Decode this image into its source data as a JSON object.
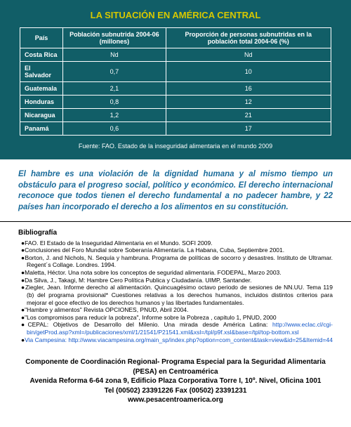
{
  "theme": {
    "teal": "#115e67",
    "yellow": "#d7c800",
    "quote_color": "#1a6b9a",
    "link_color": "#1357c9",
    "page_bg": "#ffffff",
    "border": "#ffffff"
  },
  "table_block": {
    "title": "LA SITUACIÓN EN AMÉRICA CENTRAL",
    "columns": [
      "País",
      "Población subnutrida 2004-06 (millones)",
      "Proporción de personas subnutridas en la población total 2004-06 (%)"
    ],
    "rows": [
      [
        "Costa Rica",
        "Nd",
        "Nd"
      ],
      [
        "El Salvador",
        "0,7",
        "10"
      ],
      [
        "Guatemala",
        "2,1",
        "16"
      ],
      [
        "Honduras",
        "0,8",
        "12"
      ],
      [
        "Nicaragua",
        "1,2",
        "21"
      ],
      [
        "Panamá",
        "0,6",
        "17"
      ]
    ],
    "source": "Fuente: FAO. Estado de la inseguridad alimentaria en el mundo 2009"
  },
  "quote": "El hambre es una violación de la dignidad humana y al mismo tiempo un obstáculo para el progreso social, político y económico. El derecho internacional reconoce que todos tienen el derecho fundamental a no padecer hambre, y 22 países han incorporado el derecho a los alimentos en su constitución.",
  "biblio": {
    "title": "Bibliografía",
    "entries": [
      {
        "text": "FAO. El Estado de la Inseguridad Alimentaria en el Mundo. SOFI 2009."
      },
      {
        "text": "Conclusiones del Foro Mundial sobre Soberanía Alimentaría. La Habana, Cuba, Septiembre 2001."
      },
      {
        "text": "Borton, J. and Nichols, N. Sequía y hambruna. Programa de políticas de socorro y desastres. Instituto de Ultramar. Regent´s Collage. Londres. 1994."
      },
      {
        "text": "Maletta, Héctor. Una nota sobre los conceptos de seguridad alimentaria. FODEPAL, Marzo 2003."
      },
      {
        "text": "Da Silva, J., Takagi, M: Hambre Cero Política Publica y Ciudadanía. UIMP, Santander."
      },
      {
        "text": "Ziegler, Jean. Informe derecho al alimentación. Quincuagésimo octavo periodo de sesiones de NN.UU. Tema 119 (b) del programa provisional* Cuestiones relativas a los derechos humanos, incluidos distintos criterios para mejorar el goce efectivo de los derechos humanos y las libertades fundamentales."
      },
      {
        "text": "\"Hambre y alimentos\" Revista OPCIONES, PNUD, Abril 2004."
      },
      {
        "text": "\"Los compromisos para reducir la pobreza\", Informe sobre la Pobreza , capitulo 1, PNUD, 2000"
      },
      {
        "text": "CEPAL: Objetivos de Desarrollo del Milenio. Una mirada desde América Latina:",
        "link_label": "http://www.eclac.cl/cgi-bin/getProd.asp?xml=/publicaciones/xml/1/21541/P21541.xml&xsl=/tpl/p9f.xsl&base=/tpl/top-bottom.xsl"
      },
      {
        "text": "",
        "link_label": "Via Campesina: http://www.viacampesina.org/main_sp/index.php?option=com_content&task=view&id=25&Itemid=44"
      }
    ]
  },
  "footer": {
    "line1": "Componente de Coordinación Regional- Programa Especial para la Seguridad Alimentaria (PESA)  en Centroamérica",
    "line2": "Avenida Reforma 6-64 zona 9, Edificio Plaza Corporativa Torre I, 10º. Nivel, Oficina 1001",
    "line3": "Tel (00502) 23391226 Fax (00502) 23391231",
    "line4": "www.pesacentroamerica.org"
  }
}
